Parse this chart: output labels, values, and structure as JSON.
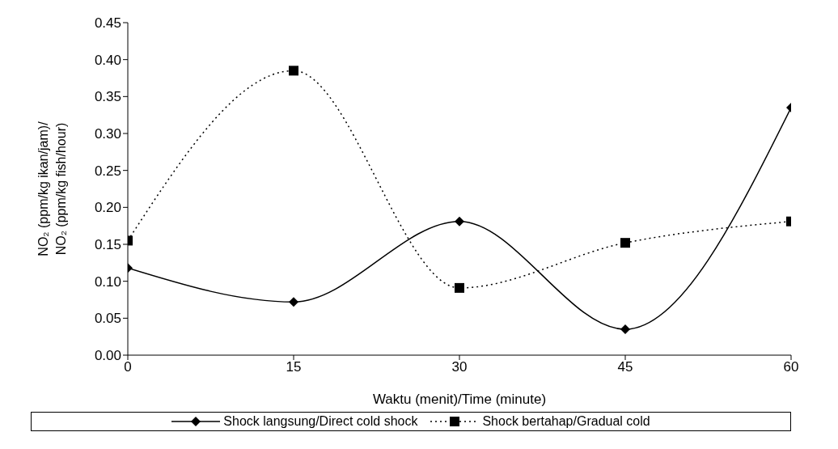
{
  "chart_data": {
    "type": "line",
    "xlabel": "Waktu (menit)/Time (minute)",
    "ylabel": "NO₂ (ppm/kg ikan/jam)/\nNO₂ (ppm/kg fish/hour)",
    "x": [
      0,
      15,
      30,
      45,
      60
    ],
    "xlim": [
      0,
      60
    ],
    "xticks": [
      0,
      15,
      30,
      45,
      60
    ],
    "ylim": [
      0,
      0.45
    ],
    "yticks": [
      {
        "value": 0,
        "label": "0.00"
      },
      {
        "value": 0.05,
        "label": "0.05"
      },
      {
        "value": 0.1,
        "label": "0.10"
      },
      {
        "value": 0.15,
        "label": "0.15"
      },
      {
        "value": 0.2,
        "label": "0.20"
      },
      {
        "value": 0.25,
        "label": "0.25"
      },
      {
        "value": 0.3,
        "label": "0.30"
      },
      {
        "value": 0.35,
        "label": "0.35"
      },
      {
        "value": 0.4,
        "label": "0.40"
      },
      {
        "value": 0.45,
        "label": "0.45"
      }
    ],
    "grid": false,
    "legend": "bottom",
    "series": [
      {
        "name": "Shock langsung/Direct cold shock",
        "color": "#000000",
        "marker": "diamond",
        "line_style": "solid",
        "values": [
          0.118,
          0.072,
          0.181,
          0.035,
          0.335
        ]
      },
      {
        "name": "Shock bertahap/Gradual cold",
        "color": "#000000",
        "marker": "square",
        "line_style": "dotted",
        "values": [
          0.155,
          0.385,
          0.091,
          0.152,
          0.181
        ]
      }
    ]
  }
}
